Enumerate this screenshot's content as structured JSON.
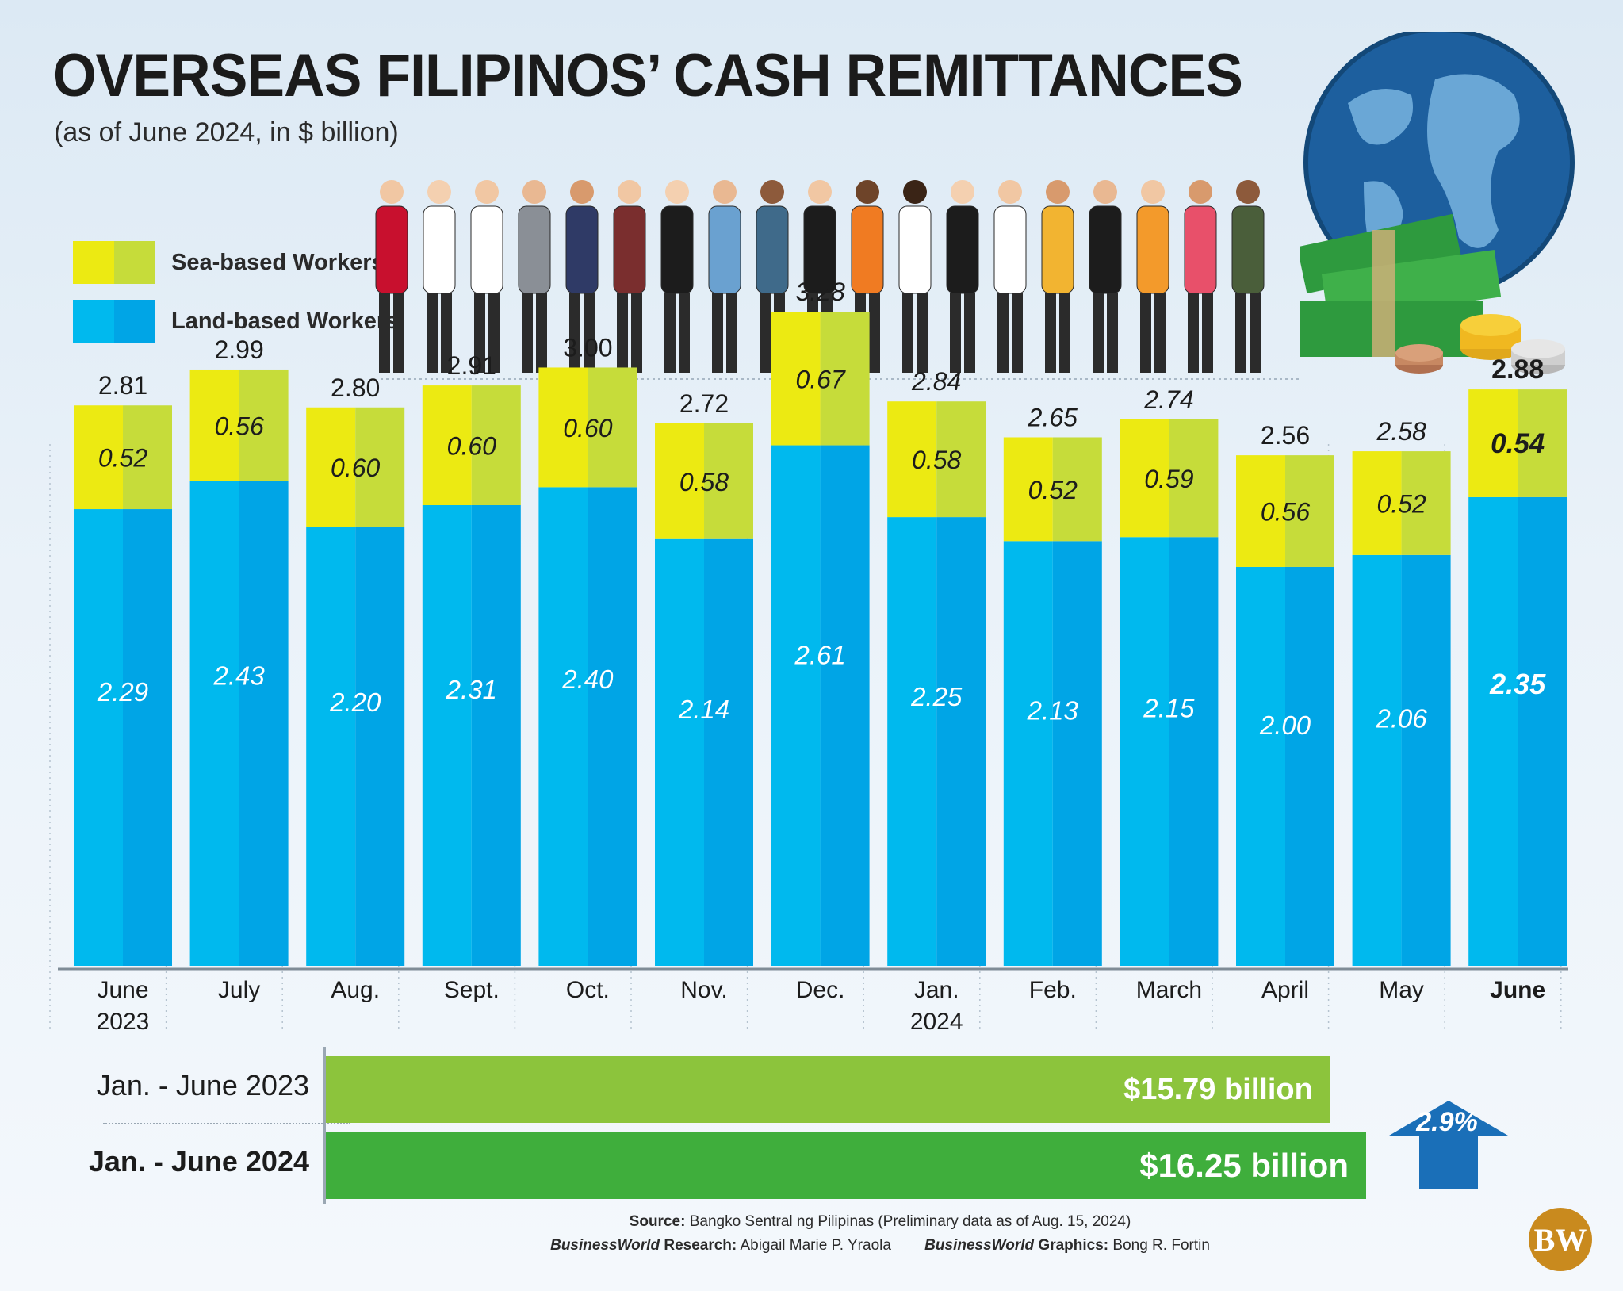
{
  "header": {
    "title": "OVERSEAS FILIPINOS’ CASH REMITTANCES",
    "subtitle": "(as of June 2024, in $ billion)"
  },
  "legend": {
    "sea": "Sea-based Workers",
    "land": "Land-based Workers"
  },
  "colors": {
    "sea_light": "#ecea12",
    "sea_dark": "#c6dc3a",
    "land_light": "#00b9ee",
    "land_dark": "#00a5e6",
    "summary_2023": "#8cc43c",
    "summary_2024": "#3fae3c",
    "arrow": "#1a6fb8"
  },
  "chart_data": {
    "type": "bar",
    "stacked": true,
    "categories": [
      "June 2023",
      "July",
      "Aug.",
      "Sept.",
      "Oct.",
      "Nov.",
      "Dec.",
      "Jan. 2024",
      "Feb.",
      "March",
      "April",
      "May",
      "June"
    ],
    "category_lines": [
      [
        "June",
        "2023"
      ],
      [
        "July"
      ],
      [
        "Aug."
      ],
      [
        "Sept."
      ],
      [
        "Oct."
      ],
      [
        "Nov."
      ],
      [
        "Dec."
      ],
      [
        "Jan.",
        "2024"
      ],
      [
        "Feb."
      ],
      [
        "March"
      ],
      [
        "April"
      ],
      [
        "May"
      ],
      [
        "June"
      ]
    ],
    "series": [
      {
        "name": "Land-based Workers",
        "values": [
          2.29,
          2.43,
          2.2,
          2.31,
          2.4,
          2.14,
          2.61,
          2.25,
          2.13,
          2.15,
          2.0,
          2.06,
          2.35
        ]
      },
      {
        "name": "Sea-based Workers",
        "values": [
          0.52,
          0.56,
          0.6,
          0.6,
          0.6,
          0.58,
          0.67,
          0.58,
          0.52,
          0.59,
          0.56,
          0.52,
          0.54
        ]
      }
    ],
    "totals": [
      2.81,
      2.99,
      2.8,
      2.91,
      3.0,
      2.72,
      3.28,
      2.84,
      2.65,
      2.74,
      2.56,
      2.58,
      2.88
    ],
    "land_labels": [
      "2.29",
      "2.43",
      "2.20",
      "2.31",
      "2.40",
      "2.14",
      "2.61",
      "2.25",
      "2.13",
      "2.15",
      "2.00",
      "2.06",
      "2.35"
    ],
    "sea_labels": [
      "0.52",
      "0.56",
      "0.60",
      "0.60",
      "0.60",
      "0.58",
      "0.67",
      "0.58",
      "0.52",
      "0.59",
      "0.56",
      "0.52",
      "0.54"
    ],
    "total_labels": [
      "2.81",
      "2.99",
      "2.80",
      "2.91",
      "3.00",
      "2.72",
      "3.28",
      "2.84",
      "2.65",
      "2.74",
      "2.56",
      "2.58",
      "2.88"
    ],
    "highlight_index": 12,
    "ylim": [
      0,
      3.3
    ],
    "grid": false,
    "legend_position": "top-left"
  },
  "summary": {
    "rows": [
      {
        "label": "Jan. - June 2023",
        "value": 15.79,
        "value_label": "$15.79 billion"
      },
      {
        "label": "Jan. - June 2024",
        "value": 16.25,
        "value_label": "$16.25 billion"
      }
    ],
    "change": "2.9%",
    "change_direction": "up"
  },
  "footer": {
    "source_label": "Source:",
    "source_text": "Bangko Sentral ng Pilipinas (Preliminary data as of Aug. 15, 2024)",
    "research_brand": "BusinessWorld",
    "research_label": "Research:",
    "research_name": "Abigail Marie P. Yraola",
    "graphics_brand": "BusinessWorld",
    "graphics_label": "Graphics:",
    "graphics_name": "Bong R. Fortin"
  },
  "logo": {
    "text": "BW"
  }
}
